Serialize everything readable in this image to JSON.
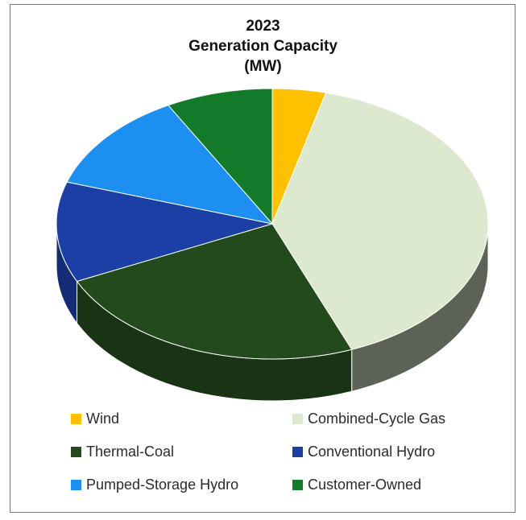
{
  "chart_data": {
    "type": "pie",
    "title_lines": [
      "2023",
      "Generation Capacity",
      "(MW)"
    ],
    "three_d": true,
    "legend_position": "bottom",
    "slices": [
      {
        "label": "Wind",
        "value": 4,
        "color": "#ffc000"
      },
      {
        "label": "Combined-Cycle Gas",
        "value": 40,
        "color": "#dde9cf"
      },
      {
        "label": "Thermal-Coal",
        "value": 24,
        "color": "#234a1c"
      },
      {
        "label": "Conventional Hydro",
        "value": 12,
        "color": "#1c3fa6"
      },
      {
        "label": "Pumped-Storage Hydro",
        "value": 12,
        "color": "#1c8ff0"
      },
      {
        "label": "Customer-Owned",
        "value": 8,
        "color": "#127a28"
      }
    ]
  }
}
